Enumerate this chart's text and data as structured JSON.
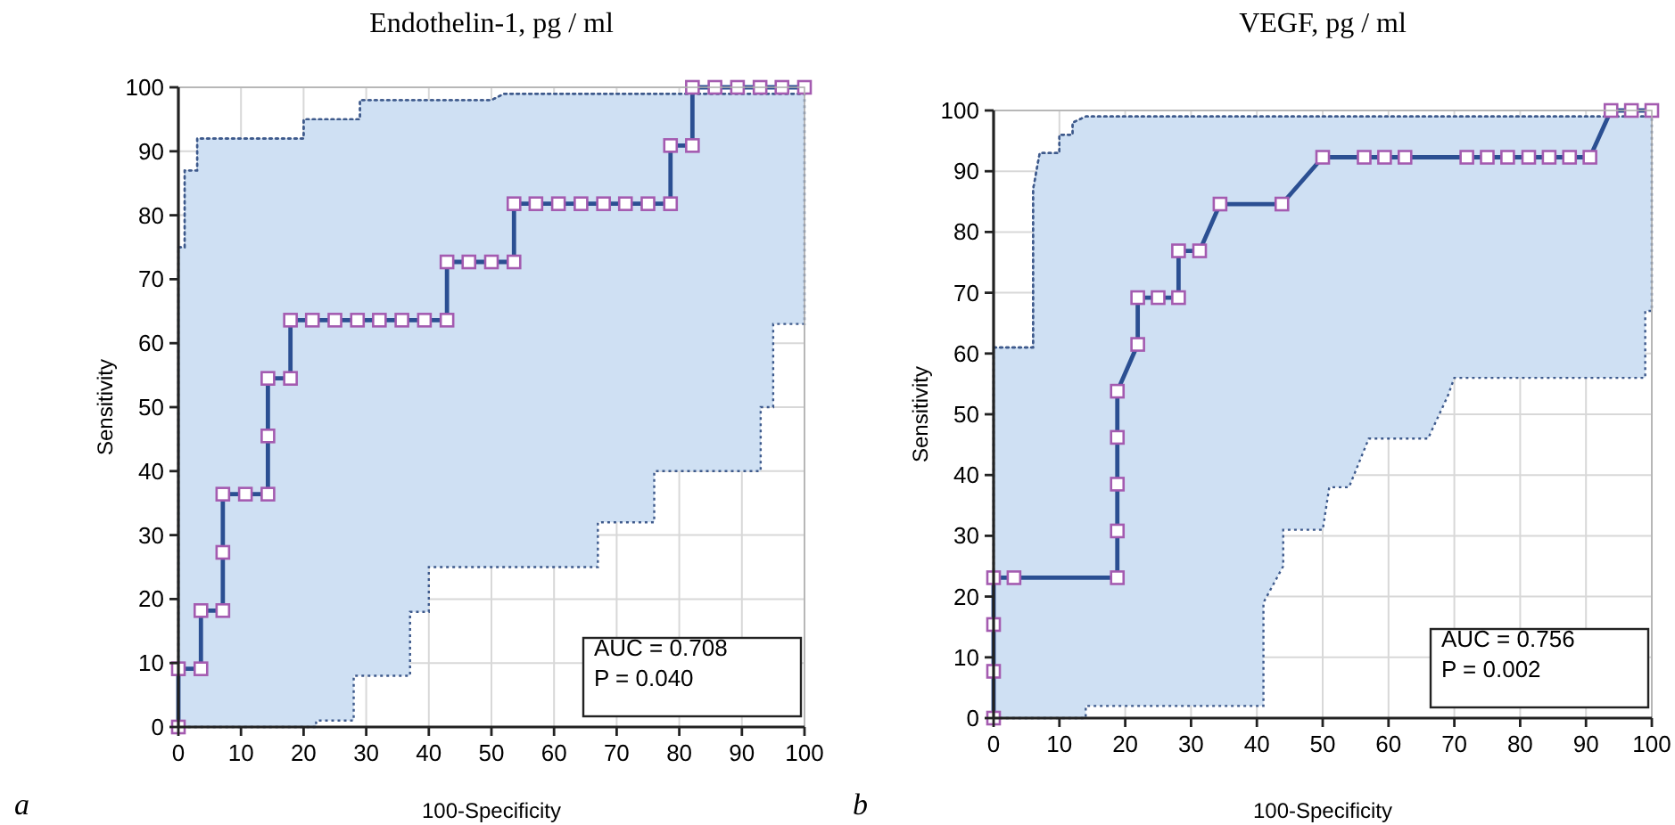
{
  "chart_data": [
    {
      "type": "line",
      "title": "Endothelin-1, pg / ml",
      "xlabel": "100-Specificity",
      "ylabel": "Sensitivity",
      "xlim": [
        0,
        100
      ],
      "ylim": [
        0,
        100
      ],
      "xticks": [
        0,
        10,
        20,
        30,
        40,
        50,
        60,
        70,
        80,
        90,
        100
      ],
      "yticks": [
        0,
        10,
        20,
        30,
        40,
        50,
        60,
        70,
        80,
        90,
        100
      ],
      "grid": true,
      "annotations": [
        "AUC = 0.708",
        "P = 0.040",
        "a"
      ],
      "series": [
        {
          "type": "line",
          "color": "#3e5a8c",
          "x": [
            0,
            1,
            1,
            3,
            3,
            20,
            20,
            22,
            22,
            28,
            28,
            29,
            29,
            37,
            37,
            40,
            40,
            50,
            52,
            67,
            67,
            76,
            76,
            93,
            93,
            95,
            95,
            100
          ],
          "values": [
            75,
            75,
            87,
            87,
            92,
            92,
            95,
            95,
            95,
            95,
            95,
            95,
            98,
            98,
            98,
            98,
            98,
            98,
            99,
            99,
            99,
            99,
            99,
            99,
            99,
            99,
            99,
            99
          ],
          "upper": [
            75,
            75,
            87,
            87,
            92,
            92,
            95,
            95,
            95,
            95,
            95,
            95,
            98,
            98,
            98,
            98,
            98,
            98,
            99,
            99,
            99,
            99,
            99,
            99,
            99,
            99,
            99,
            99
          ],
          "lower": [
            0,
            0,
            0,
            0,
            0,
            0,
            0,
            0,
            1,
            1,
            8,
            8,
            8,
            8,
            18,
            18,
            25,
            25,
            25,
            25,
            32,
            32,
            40,
            40,
            50,
            50,
            63,
            63
          ],
          "line_style": "dotted",
          "marker": "none"
        },
        {
          "color": "#2b4f92",
          "marker": "square",
          "line_style": "solid",
          "x": [
            0,
            0,
            3.6,
            3.6,
            7.1,
            7.1,
            7.1,
            10.7,
            14.3,
            14.3,
            14.3,
            17.9,
            17.9,
            21.4,
            25,
            28.6,
            32.1,
            35.7,
            39.3,
            42.9,
            42.9,
            46.4,
            50,
            53.6,
            53.6,
            57.1,
            60.7,
            64.3,
            67.9,
            71.4,
            75,
            78.6,
            78.6,
            82.1,
            82.1,
            85.7,
            89.3,
            92.9,
            96.4,
            100
          ],
          "values": [
            0,
            9.1,
            9.1,
            18.2,
            18.2,
            27.3,
            36.4,
            36.4,
            36.4,
            45.5,
            54.5,
            54.5,
            63.6,
            63.6,
            63.6,
            63.6,
            63.6,
            63.6,
            63.6,
            63.6,
            72.7,
            72.7,
            72.7,
            72.7,
            81.8,
            81.8,
            81.8,
            81.8,
            81.8,
            81.8,
            81.8,
            81.8,
            90.9,
            90.9,
            100,
            100,
            100,
            100,
            100,
            100
          ]
        }
      ]
    },
    {
      "type": "line",
      "title": "VEGF, pg / ml",
      "xlabel": "100-Specificity",
      "ylabel": "Sensitivity",
      "xlim": [
        0,
        100
      ],
      "ylim": [
        0,
        100
      ],
      "xticks": [
        0,
        10,
        20,
        30,
        40,
        50,
        60,
        70,
        80,
        90,
        100
      ],
      "yticks": [
        0,
        10,
        20,
        30,
        40,
        50,
        60,
        70,
        80,
        90,
        100
      ],
      "grid": true,
      "annotations": [
        "AUC = 0.756",
        "P = 0.002",
        "b"
      ],
      "series": [
        {
          "type": "line",
          "color": "#3e5a8c",
          "x": [
            0,
            6,
            6,
            7,
            10,
            10,
            12,
            12,
            14,
            14,
            41,
            41,
            44,
            44,
            50,
            51,
            54,
            57,
            66,
            69,
            70,
            99,
            99,
            100
          ],
          "values": [
            61,
            61,
            87,
            93,
            93,
            96,
            96,
            98,
            99,
            99,
            99,
            99,
            99,
            99,
            99,
            99,
            99,
            99,
            99,
            99,
            99,
            99,
            99,
            99
          ],
          "upper": [
            61,
            61,
            87,
            93,
            93,
            96,
            96,
            98,
            99,
            99,
            99,
            99,
            99,
            99,
            99,
            99,
            99,
            99,
            99,
            99,
            99,
            99,
            99,
            99
          ],
          "lower": [
            0,
            0,
            0,
            0,
            0,
            0,
            0,
            0,
            0,
            2,
            2,
            19,
            25,
            31,
            31,
            38,
            38,
            46,
            46,
            53,
            56,
            56,
            67,
            67
          ],
          "line_style": "dotted",
          "marker": "none"
        },
        {
          "color": "#2b4f92",
          "marker": "square",
          "line_style": "solid",
          "x": [
            0,
            0,
            0,
            0,
            3.1,
            18.8,
            18.8,
            18.8,
            18.8,
            18.8,
            21.9,
            21.9,
            25,
            28.1,
            28.1,
            31.3,
            34.4,
            43.8,
            50,
            56.3,
            59.4,
            62.5,
            71.9,
            75,
            78.1,
            81.3,
            84.4,
            87.5,
            90.6,
            93.8,
            96.9,
            100
          ],
          "values": [
            0,
            7.7,
            15.4,
            23.1,
            23.1,
            23.1,
            30.8,
            38.5,
            46.2,
            53.8,
            61.5,
            69.2,
            69.2,
            69.2,
            76.9,
            76.9,
            84.6,
            84.6,
            92.3,
            92.3,
            92.3,
            92.3,
            92.3,
            92.3,
            92.3,
            92.3,
            92.3,
            92.3,
            92.3,
            100,
            100,
            100
          ]
        }
      ]
    }
  ]
}
